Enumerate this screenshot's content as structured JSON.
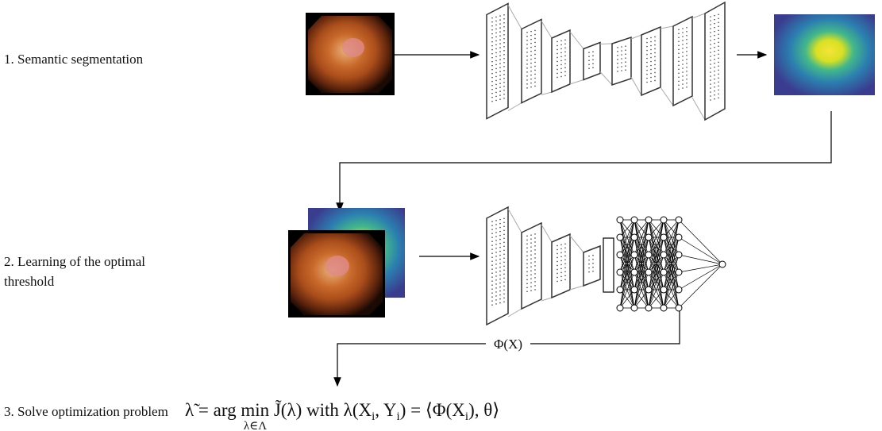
{
  "steps": [
    {
      "label_lines": [
        "1. Semantic segmentation"
      ]
    },
    {
      "label_lines": [
        "2. Learning of the optimal",
        "threshold"
      ]
    },
    {
      "label_lines": [
        "3. Solve optimization problem"
      ]
    }
  ],
  "feature_label": "Φ(X)",
  "formula": {
    "lhs": "λ̃ = arg ",
    "operator": "min",
    "operator_sub": "λ∈Λ",
    "rhs_parts": [
      " J̃(λ) with λ(X",
      "i",
      ", Y",
      "i",
      ") = ⟨Φ(X",
      "i",
      "), θ⟩"
    ]
  }
}
